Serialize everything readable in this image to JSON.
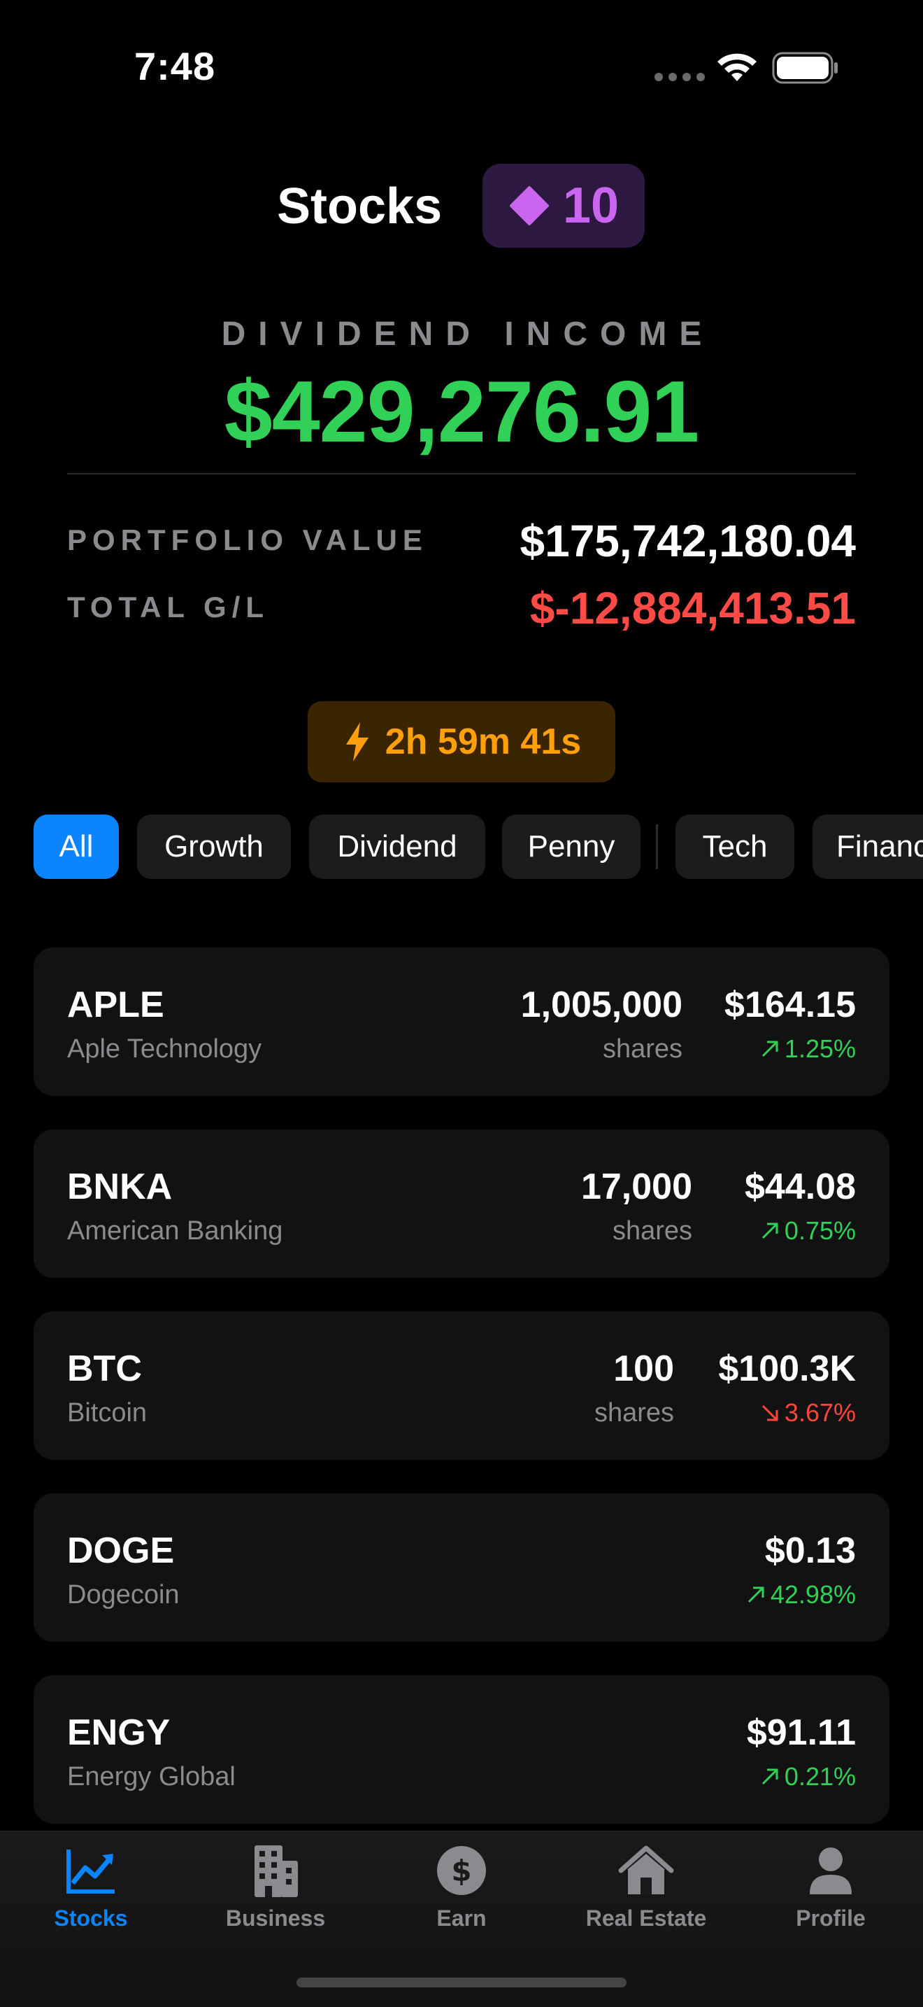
{
  "status_bar": {
    "time": "7:48"
  },
  "header": {
    "title": "Stocks",
    "gems": "10"
  },
  "dividend": {
    "label": "DIVIDEND INCOME",
    "value": "$429,276.91"
  },
  "portfolio": {
    "value_label": "PORTFOLIO VALUE",
    "value": "$175,742,180.04",
    "gl_label": "TOTAL G/L",
    "gl": "$-12,884,413.51"
  },
  "timer": {
    "text": "2h 59m 41s"
  },
  "filters": [
    "All",
    "Growth",
    "Dividend",
    "Penny",
    "Tech",
    "Finance"
  ],
  "stocks": [
    {
      "symbol": "APLE",
      "name": "Aple Technology",
      "shares": "1,005,000",
      "shares_label": "shares",
      "price": "$164.15",
      "change": "1.25%",
      "direction": "up"
    },
    {
      "symbol": "BNKA",
      "name": "American Banking",
      "shares": "17,000",
      "shares_label": "shares",
      "price": "$44.08",
      "change": "0.75%",
      "direction": "up"
    },
    {
      "symbol": "BTC",
      "name": "Bitcoin",
      "shares": "100",
      "shares_label": "shares",
      "price": "$100.3K",
      "change": "3.67%",
      "direction": "down"
    },
    {
      "symbol": "DOGE",
      "name": "Dogecoin",
      "price": "$0.13",
      "change": "42.98%",
      "direction": "up"
    },
    {
      "symbol": "ENGY",
      "name": "Energy Global",
      "price": "$91.11",
      "change": "0.21%",
      "direction": "up"
    }
  ],
  "tabs": [
    {
      "label": "Stocks",
      "icon": "chart-line-icon"
    },
    {
      "label": "Business",
      "icon": "building-icon"
    },
    {
      "label": "Earn",
      "icon": "dollar-circle-icon"
    },
    {
      "label": "Real Estate",
      "icon": "house-icon"
    },
    {
      "label": "Profile",
      "icon": "person-icon"
    }
  ],
  "colors": {
    "accent": "#0a84ff",
    "positive": "#31d158",
    "negative": "#ff453a",
    "gem": "#c965ef",
    "timer": "#ff9f0a"
  }
}
